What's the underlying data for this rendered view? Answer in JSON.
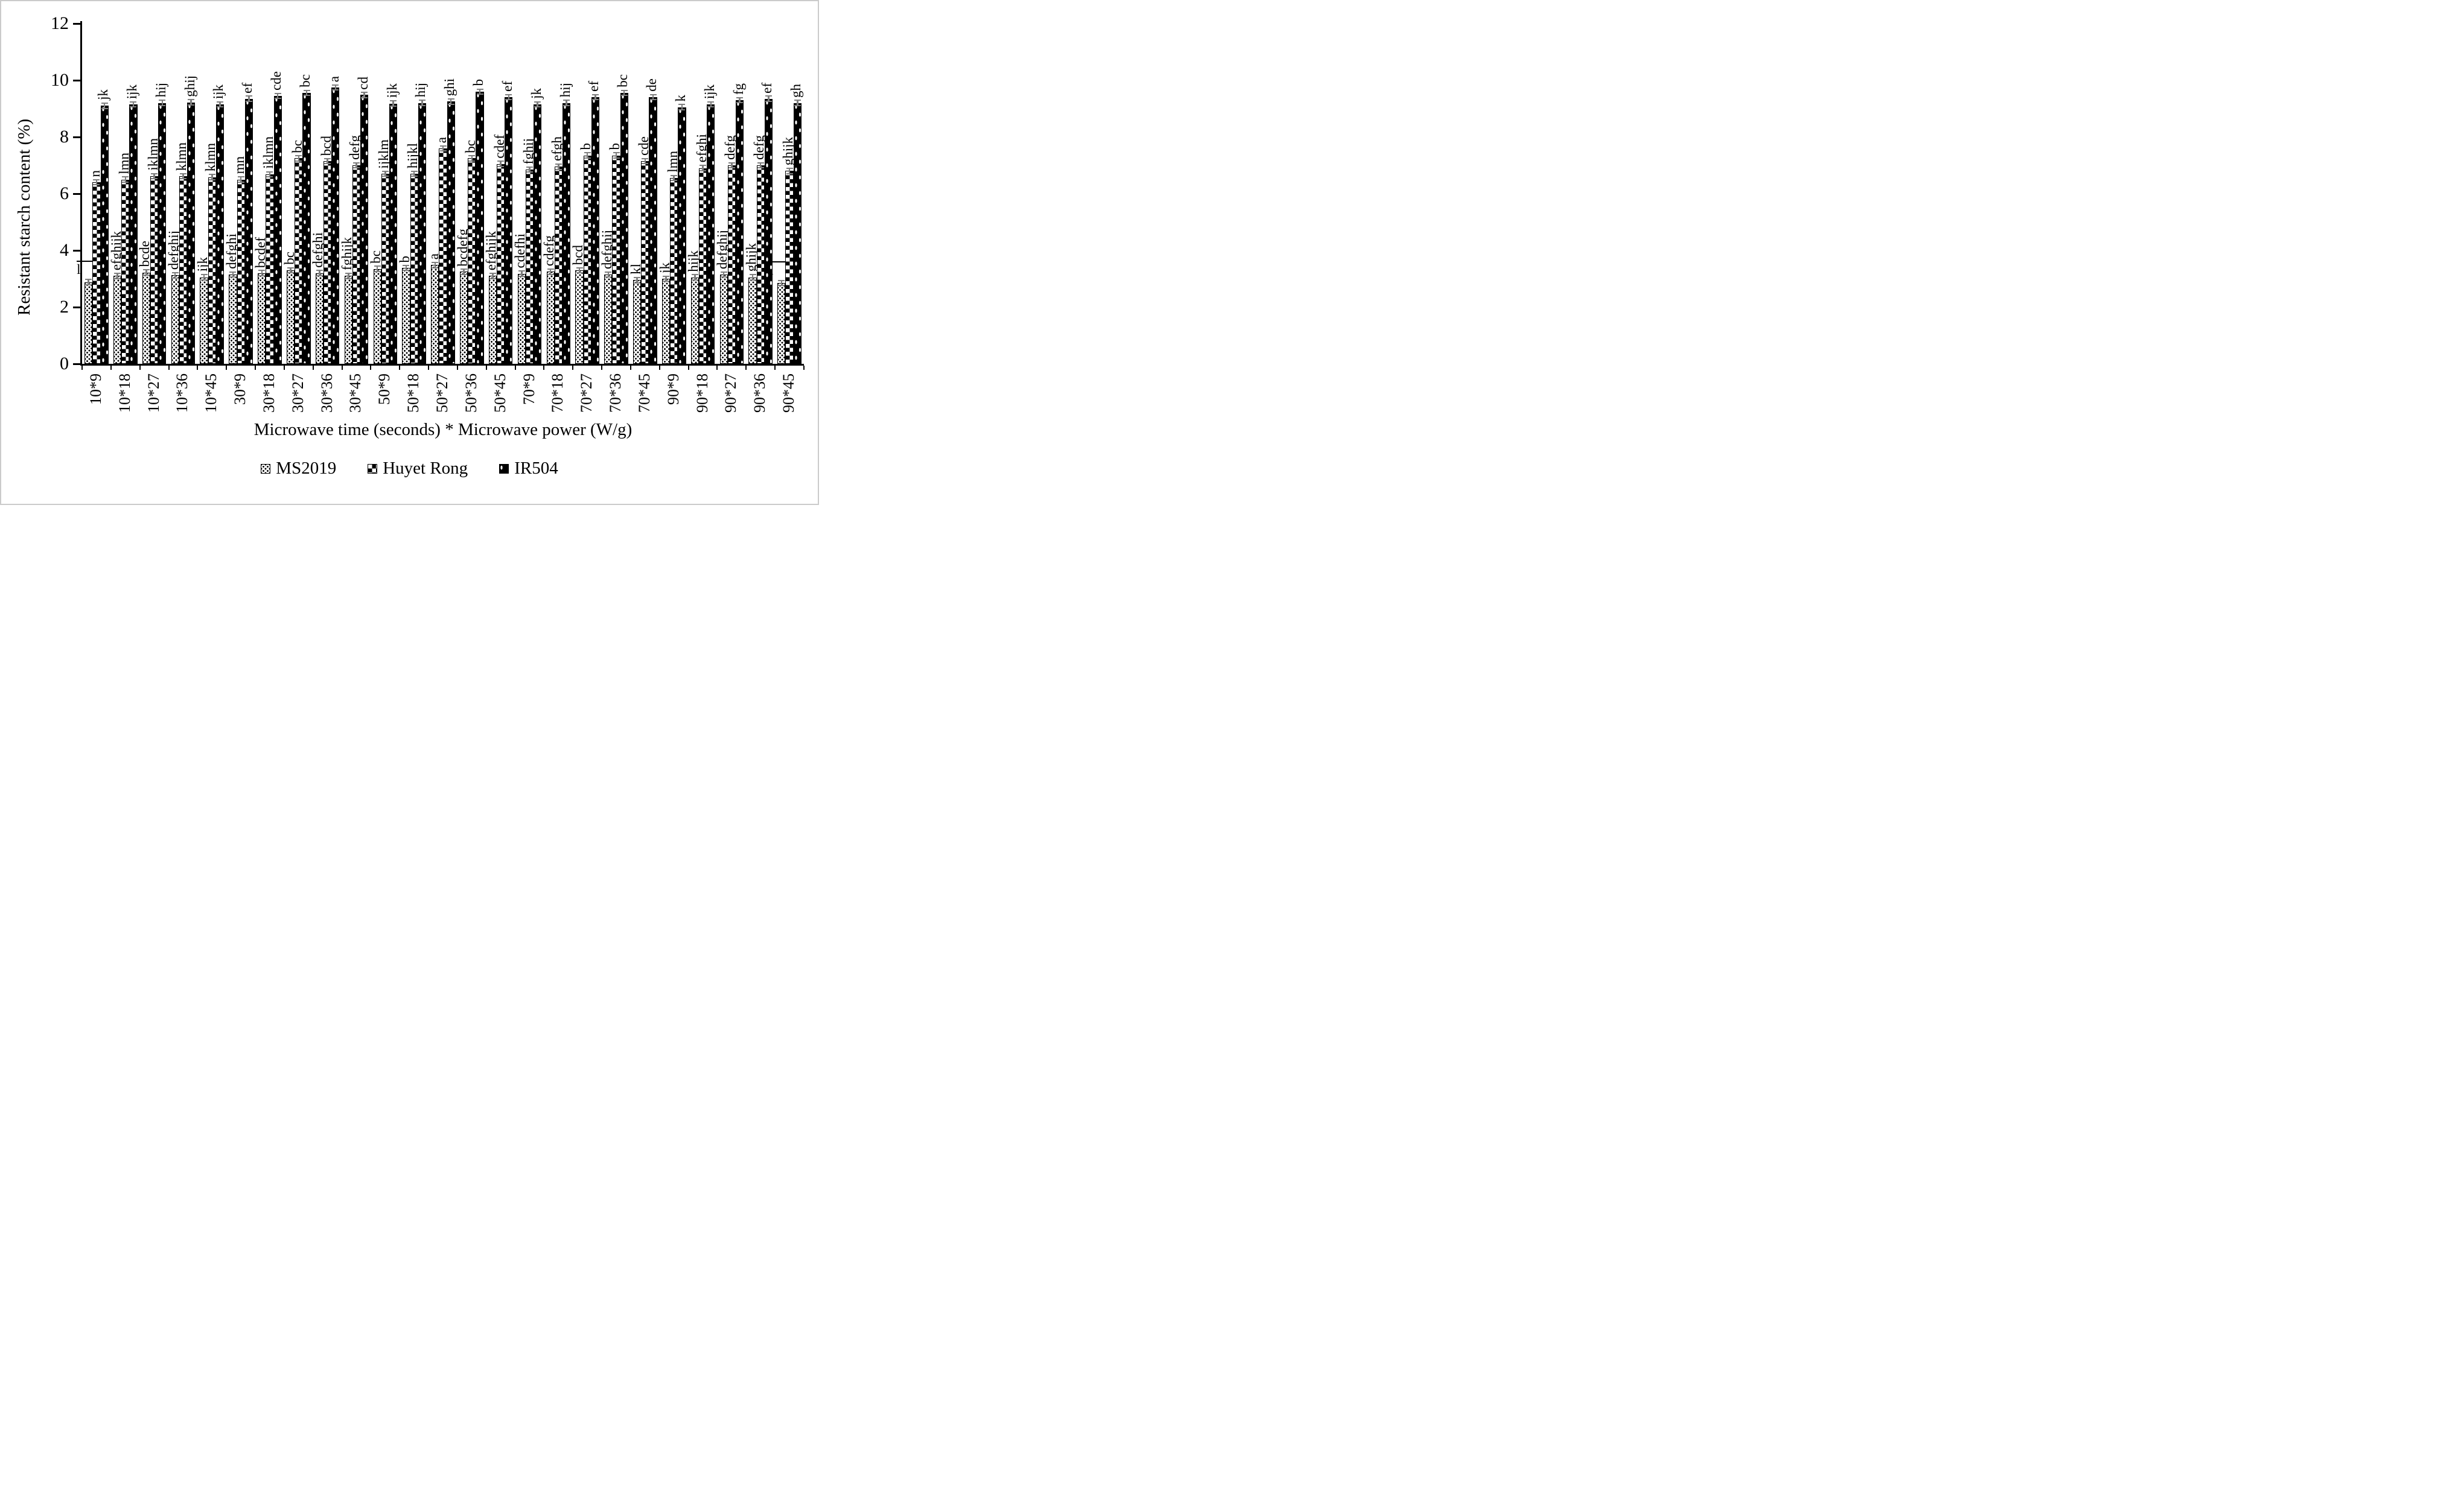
{
  "figure": {
    "background": "#ffffff",
    "border_color": "#cbcbcb"
  },
  "colors": {
    "axis": "#000000",
    "bar_fill_dark": "#000000",
    "bar_fill_light": "#ffffff",
    "error_bar": "#7f7f7f",
    "text": "#000000"
  },
  "chart_data": {
    "type": "bar",
    "title": "",
    "xlabel": "Microwave time (seconds) * Microwave power (W/g)",
    "ylabel": "Resistant starch content (%)",
    "ylim": [
      0,
      12
    ],
    "yticks": [
      0,
      2,
      4,
      6,
      8,
      10,
      12
    ],
    "grid": false,
    "legend_position": "bottom",
    "error_bar_value": 0.08,
    "categories": [
      "10*9",
      "10*18",
      "10*27",
      "10*36",
      "10*45",
      "30*9",
      "30*18",
      "30*27",
      "30*36",
      "30*45",
      "50*9",
      "50*18",
      "50*27",
      "50*36",
      "50*45",
      "70*9",
      "70*18",
      "70*27",
      "70*36",
      "70*45",
      "90*9",
      "90*18",
      "90*27",
      "90*36",
      "90*45"
    ],
    "series": [
      {
        "name": "MS2019",
        "pattern": "speckled-dots",
        "values": [
          2.88,
          3.1,
          3.22,
          3.12,
          3.05,
          3.15,
          3.2,
          3.3,
          3.2,
          3.1,
          3.35,
          3.38,
          3.48,
          3.25,
          3.1,
          3.18,
          3.25,
          3.3,
          3.15,
          2.95,
          3.0,
          3.05,
          3.15,
          3.05,
          2.85
        ],
        "sig_labels": [
          "l",
          "efghijk",
          "bcde",
          "defghij",
          "ijk",
          "defghi",
          "bcdef",
          "bc",
          "defghi",
          "fghijk",
          "bc",
          "b",
          "a",
          "bcdefg",
          "efghijk",
          "cdefhi",
          "cdefg",
          "bcd",
          "defghij",
          "kl",
          "jk",
          "hijk",
          "defghij",
          "ghijk",
          "l"
        ],
        "leader_label_indices": [
          0,
          24
        ]
      },
      {
        "name": "Huyet Rong",
        "pattern": "checkerboard",
        "values": [
          6.4,
          6.5,
          6.62,
          6.62,
          6.58,
          6.5,
          6.68,
          7.25,
          7.15,
          7.0,
          6.7,
          6.7,
          7.6,
          7.25,
          7.05,
          6.85,
          6.95,
          7.35,
          7.35,
          7.15,
          6.55,
          6.9,
          7.0,
          7.0,
          6.8
        ],
        "sig_labels": [
          "n",
          "lmn",
          "iklmn",
          "klmn",
          "klmn",
          "mn",
          "iklmn",
          "bc",
          "bcd",
          "defg",
          "ijklm",
          "hijkl",
          "a",
          "bc",
          "cdef",
          "fghij",
          "efgh",
          "b",
          "b",
          "cde",
          "lmn",
          "efghi",
          "defg",
          "defg",
          "ghijk"
        ],
        "leader_label_indices": []
      },
      {
        "name": "IR504",
        "pattern": "black-white-dots",
        "values": [
          9.1,
          9.15,
          9.2,
          9.22,
          9.15,
          9.35,
          9.45,
          9.55,
          9.75,
          9.48,
          9.18,
          9.2,
          9.25,
          9.6,
          9.4,
          9.15,
          9.2,
          9.4,
          9.55,
          9.4,
          9.05,
          9.15,
          9.3,
          9.35,
          9.2
        ],
        "sig_labels": [
          "jk",
          "ijk",
          "hij",
          "ghij",
          "ijk",
          "ef",
          "cde",
          "bc",
          "a",
          "cd",
          "ijk",
          "hij",
          "ghi",
          "b",
          "ef",
          "jk",
          "hij",
          "ef",
          "bc",
          "de",
          "k",
          "ijk",
          "fg",
          "ef",
          "gh"
        ],
        "leader_label_indices": []
      }
    ]
  }
}
